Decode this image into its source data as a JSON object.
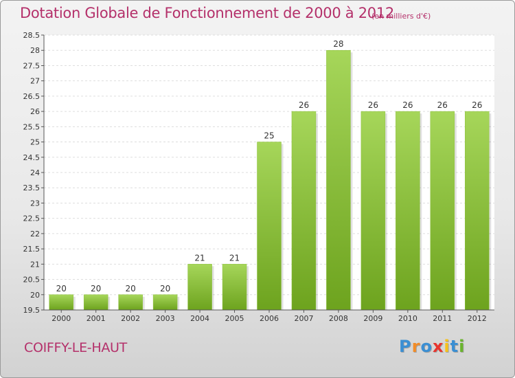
{
  "chart_data": {
    "type": "bar",
    "title": "Dotation Globale de Fonctionnement de 2000 à 2012",
    "subtitle": "(en milliers d'€)",
    "categories": [
      "2000",
      "2001",
      "2002",
      "2003",
      "2004",
      "2005",
      "2006",
      "2007",
      "2008",
      "2009",
      "2010",
      "2011",
      "2012"
    ],
    "values": [
      20,
      20,
      20,
      20,
      21,
      21,
      25,
      26,
      28,
      26,
      26,
      26,
      26
    ],
    "value_labels": [
      "20",
      "20",
      "20",
      "20",
      "21",
      "21",
      "25",
      "26",
      "28",
      "26",
      "26",
      "26",
      "26"
    ],
    "ylim": [
      19.5,
      28.5
    ],
    "yticks": [
      19.5,
      20,
      20.5,
      21,
      21.5,
      22,
      22.5,
      23,
      23.5,
      24,
      24.5,
      25,
      25.5,
      26,
      26.5,
      27,
      27.5,
      28,
      28.5
    ],
    "ytick_labels": [
      "19.5",
      "20",
      "20.5",
      "21",
      "21.5",
      "22",
      "22.5",
      "23",
      "23.5",
      "24",
      "24.5",
      "25",
      "25.5",
      "26",
      "26.5",
      "27",
      "27.5",
      "28",
      "28.5"
    ],
    "xlabel": "",
    "ylabel": "",
    "grid": true,
    "bar_color_top": "#a6d65a",
    "bar_color_bottom": "#6da31e"
  },
  "commune": "COIFFY-LE-HAUT",
  "logo": {
    "letters": [
      {
        "char": "P",
        "color": "#3b8fd3"
      },
      {
        "char": "r",
        "color": "#f28c28"
      },
      {
        "char": "o",
        "color": "#3b8fd3"
      },
      {
        "char": "x",
        "color": "#e8342d"
      },
      {
        "char": "i",
        "color": "#f7c21b"
      },
      {
        "char": "t",
        "color": "#3b8fd3"
      },
      {
        "char": "i",
        "color": "#6ab42d"
      }
    ]
  }
}
